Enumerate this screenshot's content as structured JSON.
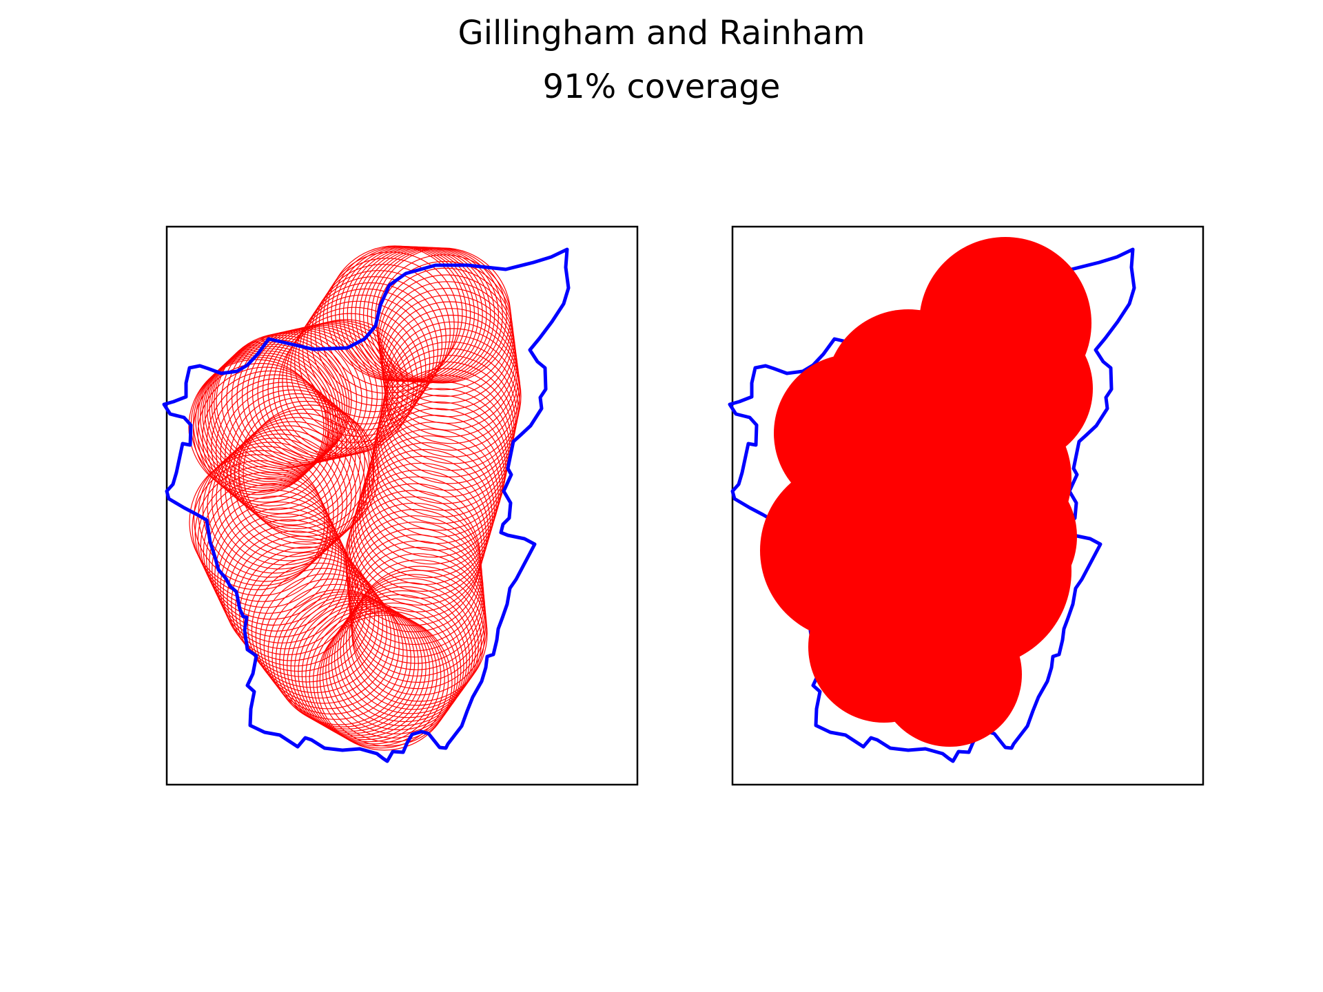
{
  "figure": {
    "title": "Gillingham and Rainham",
    "subtitle": "91% coverage",
    "colors": {
      "boundary": "#0000ff",
      "coverage": "#ff0000",
      "frame": "#000000",
      "background": "#ffffff"
    }
  },
  "panels": [
    {
      "name": "circle-outlines",
      "style": "outline"
    },
    {
      "name": "coverage-filled",
      "style": "filled"
    }
  ]
}
